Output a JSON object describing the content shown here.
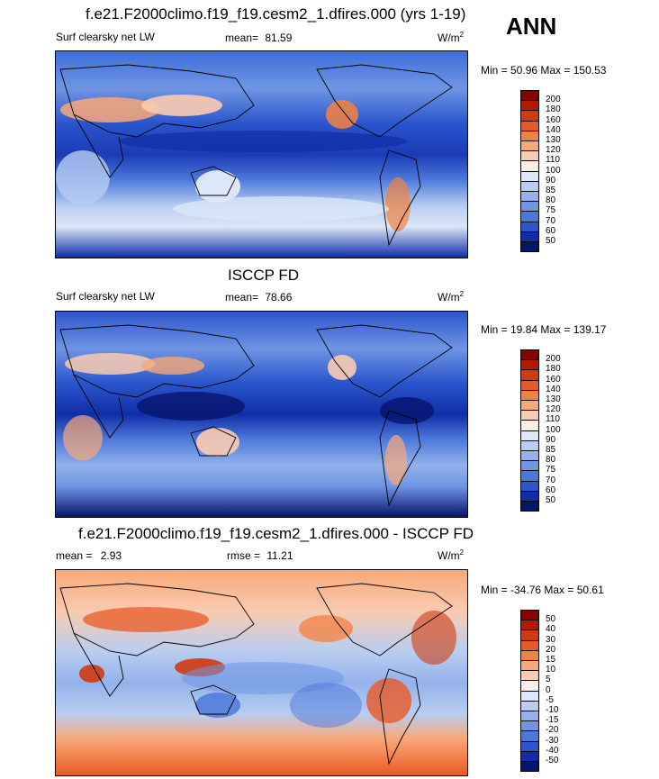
{
  "season": "ANN",
  "panels": [
    {
      "title": "f.e21.F2000climo.f19_f19.cesm2_1.dfires.000 (yrs 1-19)",
      "variable": "Surf clearsky net LW",
      "stat1_label": "mean=",
      "stat1_value": "81.59",
      "stat2_label": "",
      "stat2_value": "",
      "units": "W/m",
      "units_exp": "2",
      "minmax": "Min =  50.96 Max = 150.53",
      "levels": [
        "200",
        "180",
        "160",
        "140",
        "130",
        "120",
        "110",
        "100",
        "90",
        "85",
        "80",
        "75",
        "70",
        "60",
        "50"
      ],
      "colors": [
        "#8b0000",
        "#b01a00",
        "#cf3a10",
        "#e85a25",
        "#f4823f",
        "#f8a878",
        "#f9cbb0",
        "#fbeee6",
        "#dbe6f7",
        "#b8cdf1",
        "#93b2ea",
        "#6f95e3",
        "#4c78da",
        "#2b55cc",
        "#0f2ea6",
        "#06146e"
      ]
    },
    {
      "title": "ISCCP FD",
      "variable": "Surf clearsky net LW",
      "stat1_label": "mean=",
      "stat1_value": "78.66",
      "stat2_label": "",
      "stat2_value": "",
      "units": "W/m",
      "units_exp": "2",
      "minmax": "Min =  19.84 Max = 139.17",
      "levels": [
        "200",
        "180",
        "160",
        "140",
        "130",
        "120",
        "110",
        "100",
        "90",
        "85",
        "80",
        "75",
        "70",
        "60",
        "50"
      ],
      "colors": [
        "#8b0000",
        "#b01a00",
        "#cf3a10",
        "#e85a25",
        "#f4823f",
        "#f8a878",
        "#f9cbb0",
        "#fbeee6",
        "#dbe6f7",
        "#b8cdf1",
        "#93b2ea",
        "#6f95e3",
        "#4c78da",
        "#2b55cc",
        "#0f2ea6",
        "#06146e"
      ]
    },
    {
      "title": "f.e21.F2000climo.f19_f19.cesm2_1.dfires.000 - ISCCP FD",
      "variable": "",
      "stat1_label": "mean =",
      "stat1_value": "2.93",
      "stat2_label": "rmse =",
      "stat2_value": "11.21",
      "units": "W/m",
      "units_exp": "2",
      "minmax": "Min = -34.76 Max =  50.61",
      "levels": [
        "50",
        "40",
        "30",
        "20",
        "15",
        "10",
        "5",
        "0",
        "-5",
        "-10",
        "-15",
        "-20",
        "-30",
        "-40",
        "-50"
      ],
      "colors": [
        "#8b0000",
        "#b01a00",
        "#cf3a10",
        "#e85a25",
        "#f4823f",
        "#f8a878",
        "#f9cbb0",
        "#fbeee6",
        "#dbe6f7",
        "#b8cdf1",
        "#93b2ea",
        "#6f95e3",
        "#4c78da",
        "#2b55cc",
        "#0f2ea6",
        "#06146e"
      ]
    }
  ],
  "chart_data": [
    {
      "type": "heatmap",
      "title": "f.e21.F2000climo.f19_f19.cesm2_1.dfires.000 (yrs 1-19)",
      "variable": "Surf clearsky net LW",
      "units": "W/m2",
      "mean": 81.59,
      "min": 50.96,
      "max": 150.53,
      "contour_levels": [
        50,
        60,
        70,
        75,
        80,
        85,
        90,
        100,
        110,
        120,
        130,
        140,
        160,
        180,
        200
      ]
    },
    {
      "type": "heatmap",
      "title": "ISCCP FD",
      "variable": "Surf clearsky net LW",
      "units": "W/m2",
      "mean": 78.66,
      "min": 19.84,
      "max": 139.17,
      "contour_levels": [
        50,
        60,
        70,
        75,
        80,
        85,
        90,
        100,
        110,
        120,
        130,
        140,
        160,
        180,
        200
      ]
    },
    {
      "type": "heatmap",
      "title": "f.e21.F2000climo.f19_f19.cesm2_1.dfires.000 - ISCCP FD",
      "units": "W/m2",
      "mean": 2.93,
      "rmse": 11.21,
      "min": -34.76,
      "max": 50.61,
      "contour_levels": [
        -50,
        -40,
        -30,
        -20,
        -15,
        -10,
        -5,
        0,
        5,
        10,
        15,
        20,
        30,
        40,
        50
      ]
    }
  ]
}
